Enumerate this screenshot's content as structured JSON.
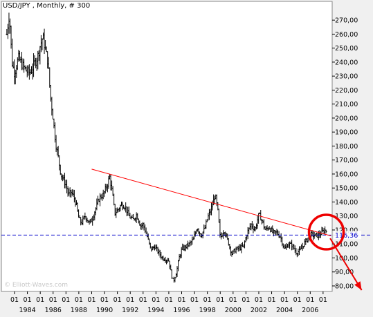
{
  "chart_data": {
    "type": "ohlc",
    "title": "USD/JPY , Monthly, # 300",
    "watermark": "© Elliott-Waves.com",
    "y_ticks": [
      "80,00",
      "90,00",
      "100,00",
      "110,00",
      "120,00",
      "130,00",
      "140,00",
      "150,00",
      "160,00",
      "170,00",
      "180,00",
      "190,00",
      "200,00",
      "210,00",
      "220,00",
      "230,00",
      "240,00",
      "250,00",
      "260,00",
      "270,00"
    ],
    "y_tick_values": [
      80,
      90,
      100,
      110,
      120,
      130,
      140,
      150,
      160,
      170,
      180,
      190,
      200,
      210,
      220,
      230,
      240,
      250,
      260,
      270
    ],
    "ylim": [
      75,
      280
    ],
    "xlim": [
      1982.3,
      2007.6
    ],
    "x_month_ticks": [
      1983,
      1984,
      1985,
      1986,
      1987,
      1988,
      1989,
      1990,
      1991,
      1992,
      1993,
      1994,
      1995,
      1996,
      1997,
      1998,
      1999,
      2000,
      2001,
      2002,
      2003,
      2004,
      2005,
      2006,
      2007
    ],
    "x_month_label": "01",
    "x_year_ticks": [
      "1984",
      "1986",
      "1988",
      "1990",
      "1992",
      "1994",
      "1996",
      "1998",
      "2000",
      "2002",
      "2004",
      "2006"
    ],
    "x_year_values": [
      1984,
      1986,
      1988,
      1990,
      1992,
      1994,
      1996,
      1998,
      2000,
      2002,
      2004,
      2006
    ],
    "current_price": 116.36,
    "current_price_label": "116,36",
    "price_path": [
      [
        1982.4,
        260
      ],
      [
        1982.6,
        275
      ],
      [
        1982.8,
        240
      ],
      [
        1983.0,
        232
      ],
      [
        1983.3,
        243
      ],
      [
        1983.6,
        238
      ],
      [
        1983.9,
        234
      ],
      [
        1984.2,
        232
      ],
      [
        1984.5,
        238
      ],
      [
        1984.8,
        244
      ],
      [
        1985.0,
        252
      ],
      [
        1985.2,
        258
      ],
      [
        1985.4,
        249
      ],
      [
        1985.6,
        240
      ],
      [
        1985.8,
        215
      ],
      [
        1986.0,
        200
      ],
      [
        1986.2,
        182
      ],
      [
        1986.4,
        172
      ],
      [
        1986.6,
        160
      ],
      [
        1986.8,
        156
      ],
      [
        1987.0,
        152
      ],
      [
        1987.2,
        145
      ],
      [
        1987.4,
        147
      ],
      [
        1987.6,
        144
      ],
      [
        1987.8,
        138
      ],
      [
        1988.0,
        128
      ],
      [
        1988.2,
        125
      ],
      [
        1988.5,
        130
      ],
      [
        1988.8,
        125
      ],
      [
        1989.0,
        127
      ],
      [
        1989.3,
        135
      ],
      [
        1989.6,
        143
      ],
      [
        1989.9,
        145
      ],
      [
        1990.2,
        152
      ],
      [
        1990.4,
        158
      ],
      [
        1990.6,
        147
      ],
      [
        1990.8,
        132
      ],
      [
        1991.0,
        134
      ],
      [
        1991.3,
        138
      ],
      [
        1991.6,
        137
      ],
      [
        1991.9,
        130
      ],
      [
        1992.2,
        127
      ],
      [
        1992.5,
        131
      ],
      [
        1992.8,
        123
      ],
      [
        1993.0,
        124
      ],
      [
        1993.3,
        116
      ],
      [
        1993.6,
        106
      ],
      [
        1993.9,
        108
      ],
      [
        1994.2,
        104
      ],
      [
        1994.5,
        100
      ],
      [
        1994.8,
        99
      ],
      [
        1995.0,
        98
      ],
      [
        1995.2,
        88
      ],
      [
        1995.35,
        83
      ],
      [
        1995.6,
        90
      ],
      [
        1995.8,
        100
      ],
      [
        1996.0,
        106
      ],
      [
        1996.3,
        108
      ],
      [
        1996.6,
        110
      ],
      [
        1996.9,
        113
      ],
      [
        1997.2,
        122
      ],
      [
        1997.5,
        116
      ],
      [
        1997.8,
        121
      ],
      [
        1998.0,
        128
      ],
      [
        1998.3,
        135
      ],
      [
        1998.6,
        145
      ],
      [
        1998.8,
        135
      ],
      [
        1999.0,
        114
      ],
      [
        1999.3,
        120
      ],
      [
        1999.6,
        112
      ],
      [
        1999.9,
        103
      ],
      [
        2000.2,
        106
      ],
      [
        2000.5,
        107
      ],
      [
        2000.8,
        108
      ],
      [
        2001.1,
        118
      ],
      [
        2001.4,
        124
      ],
      [
        2001.7,
        120
      ],
      [
        2002.0,
        131
      ],
      [
        2002.2,
        128
      ],
      [
        2002.5,
        120
      ],
      [
        2002.8,
        122
      ],
      [
        2003.1,
        118
      ],
      [
        2003.4,
        118
      ],
      [
        2003.7,
        115
      ],
      [
        2004.0,
        106
      ],
      [
        2004.3,
        110
      ],
      [
        2004.6,
        109
      ],
      [
        2004.9,
        104
      ],
      [
        2005.2,
        105
      ],
      [
        2005.5,
        110
      ],
      [
        2005.8,
        114
      ],
      [
        2006.0,
        117
      ],
      [
        2006.3,
        116
      ],
      [
        2006.6,
        116
      ],
      [
        2006.9,
        118
      ],
      [
        2007.1,
        120
      ],
      [
        2007.3,
        119
      ]
    ],
    "trendline": [
      [
        1989.0,
        163.5
      ],
      [
        2007.6,
        115.8
      ]
    ],
    "annotation_circle_center": [
      2007.25,
      118.5
    ],
    "arrow_from": [
      2007.55,
      114
    ],
    "arrow_to": [
      2010.0,
      77
    ]
  }
}
